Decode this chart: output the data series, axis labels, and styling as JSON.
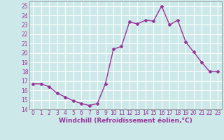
{
  "x": [
    0,
    1,
    2,
    3,
    4,
    5,
    6,
    7,
    8,
    9,
    10,
    11,
    12,
    13,
    14,
    15,
    16,
    17,
    18,
    19,
    20,
    21,
    22,
    23
  ],
  "y": [
    16.7,
    16.7,
    16.4,
    15.7,
    15.3,
    14.9,
    14.6,
    14.4,
    14.6,
    16.7,
    20.4,
    20.7,
    23.3,
    23.1,
    23.5,
    23.4,
    25.0,
    23.0,
    23.5,
    21.2,
    20.1,
    19.0,
    18.0,
    18.0
  ],
  "line_color": "#993399",
  "marker": "D",
  "markersize": 2,
  "linewidth": 1.0,
  "xlabel": "Windchill (Refroidissement éolien,°C)",
  "xlim": [
    -0.5,
    23.5
  ],
  "ylim": [
    14,
    25.5
  ],
  "yticks": [
    14,
    15,
    16,
    17,
    18,
    19,
    20,
    21,
    22,
    23,
    24,
    25
  ],
  "xticks": [
    0,
    1,
    2,
    3,
    4,
    5,
    6,
    7,
    8,
    9,
    10,
    11,
    12,
    13,
    14,
    15,
    16,
    17,
    18,
    19,
    20,
    21,
    22,
    23
  ],
  "background_color": "#cce8e8",
  "grid_color": "#ffffff",
  "tick_label_color": "#993399",
  "axis_label_color": "#993399",
  "tick_fontsize": 5.5,
  "xlabel_fontsize": 6.5
}
